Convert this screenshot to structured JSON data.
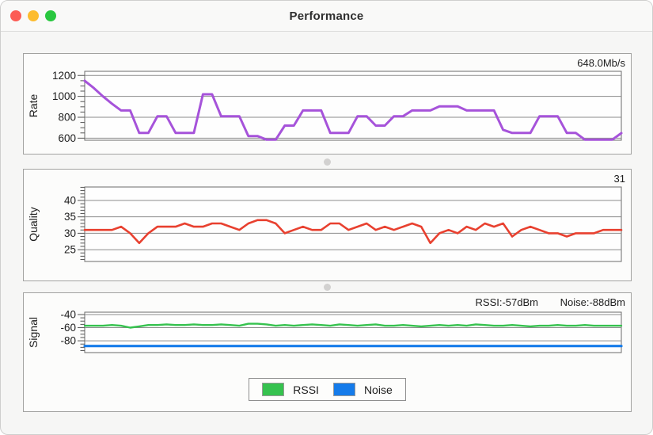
{
  "window": {
    "title": "Performance",
    "traffic_light_colors": [
      "#fc5d55",
      "#fdbc2e",
      "#29c73f"
    ]
  },
  "chart_data": [
    {
      "id": "rate",
      "type": "line",
      "axis_label": "Rate",
      "current_value_labels": [
        "648.0Mb/s"
      ],
      "y_ticks": [
        600,
        800,
        1000,
        1200
      ],
      "y_minor_step": 50,
      "y_range": [
        580,
        1240
      ],
      "x_axis": {
        "labels_visible": false,
        "n_points": 60
      },
      "grid": true,
      "series": [
        {
          "name": "Rate (Mb/s)",
          "color": "#a653da",
          "stroke_width": 3,
          "values": [
            1150,
            1080,
            1000,
            930,
            865,
            865,
            650,
            650,
            810,
            810,
            650,
            650,
            650,
            1020,
            1020,
            810,
            810,
            810,
            620,
            620,
            585,
            585,
            720,
            720,
            865,
            865,
            865,
            650,
            650,
            650,
            810,
            810,
            720,
            720,
            810,
            810,
            865,
            865,
            865,
            905,
            905,
            905,
            865,
            865,
            865,
            865,
            680,
            650,
            650,
            650,
            810,
            810,
            810,
            650,
            650,
            585,
            585,
            585,
            585,
            648
          ]
        }
      ]
    },
    {
      "id": "quality",
      "type": "line",
      "axis_label": "Quality",
      "current_value_labels": [
        "31"
      ],
      "y_ticks": [
        25,
        30,
        35,
        40
      ],
      "y_minor_step": 1,
      "y_range": [
        21.4,
        44.1
      ],
      "x_axis": {
        "labels_visible": false,
        "n_points": 60
      },
      "grid": true,
      "series": [
        {
          "name": "Quality",
          "color": "#e8402f",
          "stroke_width": 2.6,
          "values": [
            31,
            31,
            31,
            31,
            32,
            30,
            27,
            30,
            32,
            32,
            32,
            33,
            32,
            32,
            33,
            33,
            32,
            31,
            33,
            34,
            34,
            33,
            30,
            31,
            32,
            31,
            31,
            33,
            33,
            31,
            32,
            33,
            31,
            32,
            31,
            32,
            33,
            32,
            27,
            30,
            31,
            30,
            32,
            31,
            33,
            32,
            33,
            29,
            31,
            32,
            31,
            30,
            30,
            29,
            30,
            30,
            30,
            31,
            31,
            31
          ]
        }
      ]
    },
    {
      "id": "signal",
      "type": "line",
      "axis_label": "Signal",
      "current_value_labels": [
        "RSSI:-57dBm",
        "Noise:-88dBm"
      ],
      "y_ticks": [
        -80,
        -60,
        -40
      ],
      "y_minor_step": 5,
      "y_range": [
        -98,
        -36.4
      ],
      "x_axis": {
        "labels_visible": false,
        "n_points": 60
      },
      "grid": true,
      "series": [
        {
          "name": "RSSI",
          "color": "#36c24f",
          "stroke_width": 2.4,
          "values": [
            -57,
            -57,
            -57,
            -56,
            -57,
            -60,
            -58,
            -56,
            -56,
            -55,
            -56,
            -56,
            -55,
            -56,
            -56,
            -55,
            -56,
            -57,
            -54,
            -54,
            -55,
            -57,
            -56,
            -57,
            -56,
            -55,
            -56,
            -57,
            -55,
            -56,
            -57,
            -56,
            -55,
            -57,
            -57,
            -56,
            -57,
            -58,
            -57,
            -56,
            -57,
            -56,
            -57,
            -55,
            -56,
            -57,
            -57,
            -56,
            -57,
            -58,
            -57,
            -57,
            -56,
            -57,
            -57,
            -56,
            -57,
            -57,
            -57,
            -57
          ]
        },
        {
          "name": "Noise",
          "color": "#157bea",
          "stroke_width": 3.2,
          "values": [
            -88,
            -88,
            -88,
            -88,
            -88,
            -88,
            -88,
            -88,
            -88,
            -88,
            -88,
            -88,
            -88,
            -88,
            -88,
            -88,
            -88,
            -88,
            -88,
            -88,
            -88,
            -88,
            -88,
            -88,
            -88,
            -88,
            -88,
            -88,
            -88,
            -88,
            -88,
            -88,
            -88,
            -88,
            -88,
            -88,
            -88,
            -88,
            -88,
            -88,
            -88,
            -88,
            -88,
            -88,
            -88,
            -88,
            -88,
            -88,
            -88,
            -88,
            -88,
            -88,
            -88,
            -88,
            -88,
            -88,
            -88,
            -88,
            -88,
            -88
          ]
        }
      ]
    }
  ],
  "legend": {
    "items": [
      {
        "label": "RSSI",
        "color": "#36c24f"
      },
      {
        "label": "Noise",
        "color": "#157bea"
      }
    ]
  }
}
